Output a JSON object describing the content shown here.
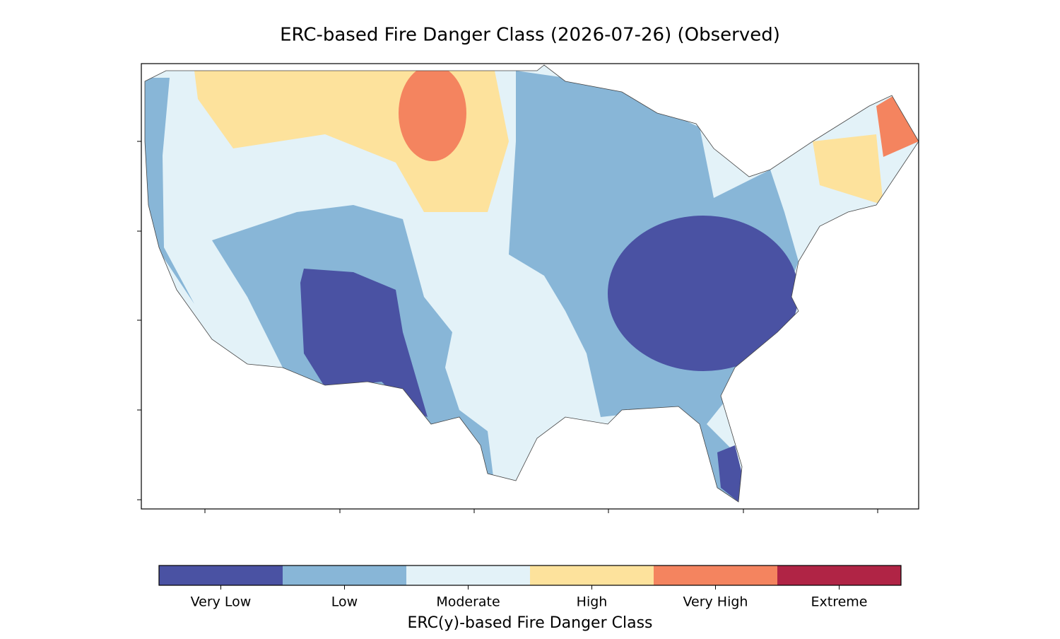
{
  "title": "ERC-based Fire Danger Class (2026-07-26) (Observed)",
  "colorbar": {
    "label": "ERC(y)-based Fire Danger Class",
    "classes": [
      {
        "name": "Very Low",
        "color": "#4a52a3"
      },
      {
        "name": "Low",
        "color": "#88b6d7"
      },
      {
        "name": "Moderate",
        "color": "#e3f2f8"
      },
      {
        "name": "High",
        "color": "#fde29c"
      },
      {
        "name": "Very High",
        "color": "#f4845f"
      },
      {
        "name": "Extreme",
        "color": "#b02445"
      }
    ]
  }
}
